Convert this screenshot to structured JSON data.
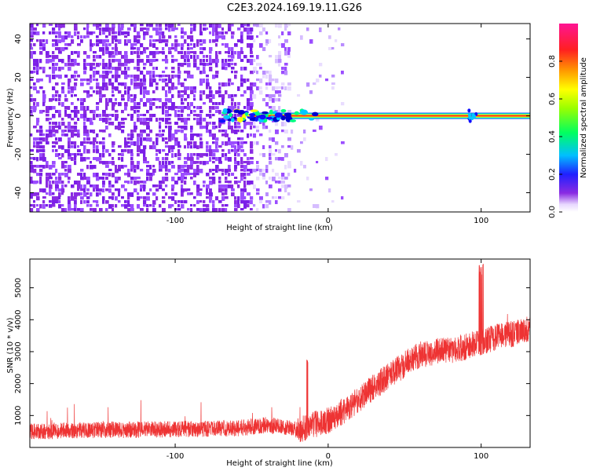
{
  "title": "C2E3.2024.169.19.11.G26",
  "colors": {
    "snr_line": "#ee3333",
    "axis": "#000000"
  },
  "chart_data": [
    {
      "type": "heatmap",
      "xlabel": "Height of straight line (km)",
      "ylabel": "Frequency (Hz)",
      "xlim": [
        -195,
        132
      ],
      "ylim": [
        -50,
        48
      ],
      "xticks": [
        -100,
        0,
        100
      ],
      "yticks": [
        -40,
        -20,
        0,
        20,
        40
      ],
      "colorbar": {
        "label": "Normalized spectral amplitude",
        "range": [
          0,
          1
        ],
        "ticks": [
          0.0,
          0.2,
          0.4,
          0.6,
          0.8
        ],
        "colormap": "rainbow (purple→blue→cyan→green→yellow→orange→red→magenta)"
      },
      "features": {
        "noise_region_x": [
          -195,
          -25
        ],
        "noise_amplitude": 0.05,
        "signal_line": {
          "x": [
            -70,
            132
          ],
          "frequency_hz": 0,
          "amplitude": 0.9
        }
      }
    },
    {
      "type": "line",
      "xlabel": "Height of straight line (km)",
      "ylabel": "SNR (10 * v/v)",
      "xlim": [
        -195,
        132
      ],
      "ylim": [
        0,
        5900
      ],
      "xticks": [
        -100,
        0,
        100
      ],
      "yticks": [
        1000,
        2000,
        3000,
        4000,
        5000
      ],
      "series": [
        {
          "x": [
            -195,
            -180,
            -160,
            -140,
            -120,
            -100,
            -80,
            -60,
            -40,
            -30,
            -20,
            -10,
            0,
            10,
            20,
            30,
            40,
            50,
            60,
            70,
            80,
            90,
            100,
            110,
            120,
            132
          ],
          "values": [
            500,
            520,
            540,
            550,
            560,
            570,
            580,
            600,
            700,
            650,
            550,
            700,
            850,
            1150,
            1500,
            1900,
            2250,
            2600,
            2900,
            3000,
            3050,
            3150,
            3300,
            3450,
            3550,
            3700
          ]
        }
      ]
    }
  ]
}
